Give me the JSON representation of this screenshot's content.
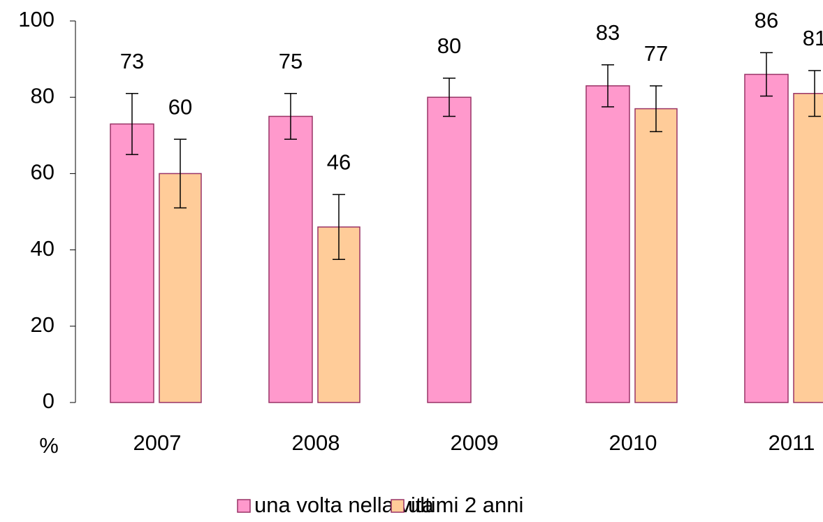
{
  "chart_data": {
    "type": "bar",
    "y_label": "%",
    "categories": [
      "2007",
      "2008",
      "2009",
      "2010",
      "2011"
    ],
    "series": [
      {
        "name": "una volta nella vita",
        "color": "#ff99cc",
        "values": [
          73,
          75,
          80,
          83,
          86
        ],
        "errors": [
          8,
          6,
          5,
          5.5,
          5.7
        ]
      },
      {
        "name": "ultimi 2 anni",
        "color": "#ffcc99",
        "values": [
          60,
          46,
          null,
          77,
          81
        ],
        "errors": [
          9,
          8.5,
          null,
          6,
          6
        ]
      }
    ],
    "ylim": [
      0,
      100
    ],
    "yticks": [
      0,
      20,
      40,
      60,
      80,
      100
    ],
    "grid": false,
    "legend": "bottom"
  }
}
